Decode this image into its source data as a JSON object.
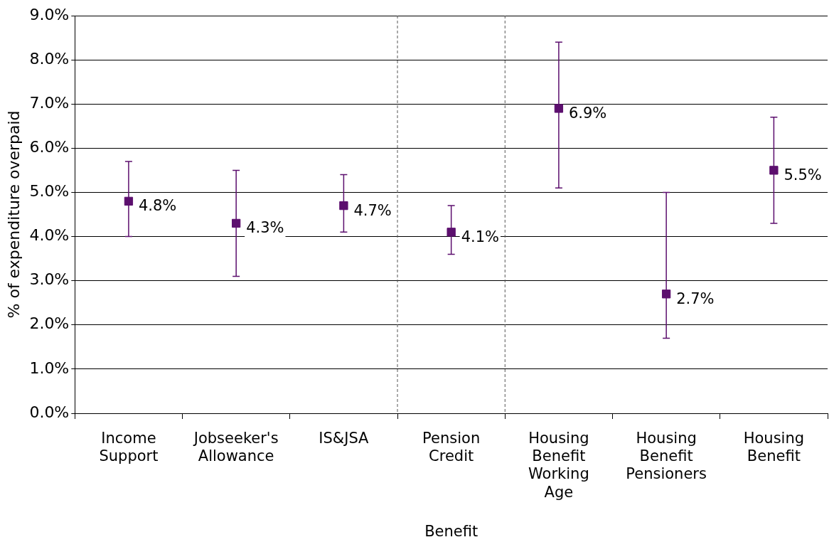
{
  "chart_data": {
    "type": "scatter",
    "xlabel": "Benefit",
    "ylabel": "% of expenditure overpaid",
    "categories": [
      "Income Support",
      "Jobseeker's Allowance",
      "IS&JSA",
      "Pension Credit",
      "Housing Benefit Working Age",
      "Housing Benefit Pensioners",
      "Housing Benefit"
    ],
    "series": [
      {
        "color": "#5c0f6e",
        "values": [
          4.8,
          4.3,
          4.7,
          4.1,
          6.9,
          2.7,
          5.5
        ],
        "errors": [
          [
            4.0,
            5.7
          ],
          [
            3.1,
            5.5
          ],
          [
            4.1,
            5.4
          ],
          [
            3.6,
            4.7
          ],
          [
            5.1,
            8.4
          ],
          [
            1.7,
            5.0
          ],
          [
            4.3,
            6.7
          ]
        ],
        "value_labels": [
          "4.8%",
          "4.3%",
          "4.7%",
          "4.1%",
          "6.9%",
          "2.7%",
          "5.5%"
        ]
      }
    ],
    "ylim": [
      0,
      9
    ],
    "yticks": [
      {
        "value": 0,
        "label": "0.0%"
      },
      {
        "value": 1,
        "label": "1.0%"
      },
      {
        "value": 2,
        "label": "2.0%"
      },
      {
        "value": 3,
        "label": "3.0%"
      },
      {
        "value": 4,
        "label": "4.0%"
      },
      {
        "value": 5,
        "label": "5.0%"
      },
      {
        "value": 6,
        "label": "6.0%"
      },
      {
        "value": 7,
        "label": "7.0%"
      },
      {
        "value": 8,
        "label": "8.0%"
      },
      {
        "value": 9,
        "label": "9.0%"
      }
    ],
    "grid": "y",
    "legend": false,
    "marker": "square"
  }
}
